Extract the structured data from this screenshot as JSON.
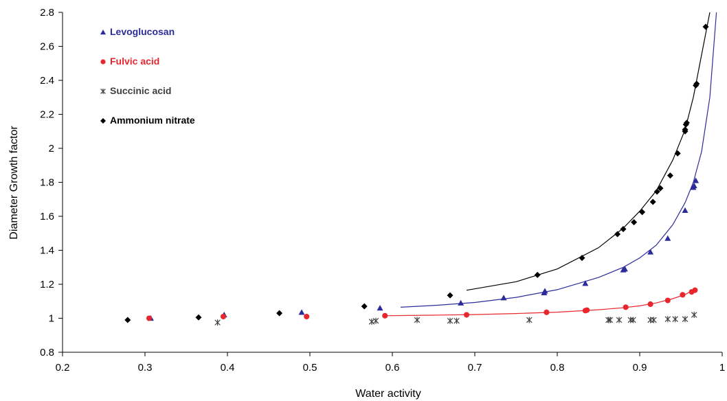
{
  "chart_data": {
    "type": "scatter",
    "title": "",
    "xlabel": "Water activity",
    "ylabel": "Diameter Growth factor",
    "xlim": [
      0.2,
      1.0
    ],
    "ylim": [
      0.8,
      2.8
    ],
    "xticks": [
      "0.2",
      "0.3",
      "0.4",
      "0.5",
      "0.6",
      "0.7",
      "0.8",
      "0.9",
      "1"
    ],
    "yticks": [
      "0.8",
      "1",
      "1.2",
      "1.4",
      "1.6",
      "1.8",
      "2",
      "2.2",
      "2.4",
      "2.6",
      "2.8"
    ],
    "grid": false,
    "legend_placement": "top-left",
    "series": [
      {
        "name": "Levoglucosan",
        "color": "#2b2b9b",
        "marker": "triangle",
        "points": [
          [
            0.307,
            1.0
          ],
          [
            0.396,
            1.02
          ],
          [
            0.49,
            1.035
          ],
          [
            0.585,
            1.06
          ],
          [
            0.683,
            1.09
          ],
          [
            0.735,
            1.12
          ],
          [
            0.784,
            1.15
          ],
          [
            0.785,
            1.16
          ],
          [
            0.834,
            1.205
          ],
          [
            0.88,
            1.285
          ],
          [
            0.882,
            1.29
          ],
          [
            0.913,
            1.39
          ],
          [
            0.934,
            1.47
          ],
          [
            0.955,
            1.635
          ],
          [
            0.965,
            1.77
          ],
          [
            0.966,
            1.78
          ],
          [
            0.968,
            1.81
          ]
        ],
        "fit": [
          [
            0.61,
            1.065
          ],
          [
            0.65,
            1.075
          ],
          [
            0.7,
            1.093
          ],
          [
            0.75,
            1.123
          ],
          [
            0.8,
            1.168
          ],
          [
            0.85,
            1.24
          ],
          [
            0.88,
            1.3
          ],
          [
            0.9,
            1.355
          ],
          [
            0.92,
            1.43
          ],
          [
            0.94,
            1.55
          ],
          [
            0.955,
            1.68
          ],
          [
            0.965,
            1.8
          ],
          [
            0.975,
            1.98
          ],
          [
            0.985,
            2.3
          ],
          [
            0.993,
            2.8
          ]
        ]
      },
      {
        "name": "Fulvic acid",
        "color": "#e8262d",
        "marker": "circle",
        "points": [
          [
            0.305,
            1.0
          ],
          [
            0.395,
            1.01
          ],
          [
            0.496,
            1.01
          ],
          [
            0.591,
            1.015
          ],
          [
            0.69,
            1.02
          ],
          [
            0.787,
            1.035
          ],
          [
            0.834,
            1.045
          ],
          [
            0.836,
            1.048
          ],
          [
            0.883,
            1.065
          ],
          [
            0.913,
            1.083
          ],
          [
            0.934,
            1.105
          ],
          [
            0.952,
            1.138
          ],
          [
            0.963,
            1.155
          ],
          [
            0.967,
            1.165
          ]
        ],
        "fit": [
          [
            0.59,
            1.015
          ],
          [
            0.65,
            1.018
          ],
          [
            0.7,
            1.022
          ],
          [
            0.75,
            1.028
          ],
          [
            0.8,
            1.036
          ],
          [
            0.85,
            1.05
          ],
          [
            0.88,
            1.062
          ],
          [
            0.9,
            1.073
          ],
          [
            0.92,
            1.09
          ],
          [
            0.94,
            1.115
          ],
          [
            0.955,
            1.14
          ],
          [
            0.965,
            1.165
          ],
          [
            0.968,
            1.17
          ]
        ]
      },
      {
        "name": "Succinic acid",
        "color": "#3e3e3e",
        "marker": "star",
        "points": [
          [
            0.388,
            0.975
          ],
          [
            0.575,
            0.98
          ],
          [
            0.58,
            0.985
          ],
          [
            0.63,
            0.99
          ],
          [
            0.67,
            0.985
          ],
          [
            0.678,
            0.985
          ],
          [
            0.766,
            0.99
          ],
          [
            0.862,
            0.99
          ],
          [
            0.864,
            0.99
          ],
          [
            0.875,
            0.99
          ],
          [
            0.889,
            0.99
          ],
          [
            0.892,
            0.99
          ],
          [
            0.913,
            0.99
          ],
          [
            0.917,
            0.99
          ],
          [
            0.934,
            0.995
          ],
          [
            0.943,
            0.995
          ],
          [
            0.955,
            0.995
          ],
          [
            0.966,
            1.02
          ]
        ]
      },
      {
        "name": "Ammonium nitrate",
        "color": "#000000",
        "marker": "diamond",
        "points": [
          [
            0.279,
            0.99
          ],
          [
            0.365,
            1.005
          ],
          [
            0.463,
            1.03
          ],
          [
            0.566,
            1.07
          ],
          [
            0.67,
            1.135
          ],
          [
            0.776,
            1.255
          ],
          [
            0.83,
            1.355
          ],
          [
            0.873,
            1.495
          ],
          [
            0.88,
            1.525
          ],
          [
            0.893,
            1.565
          ],
          [
            0.903,
            1.625
          ],
          [
            0.916,
            1.685
          ],
          [
            0.921,
            1.745
          ],
          [
            0.925,
            1.765
          ],
          [
            0.937,
            1.84
          ],
          [
            0.946,
            1.97
          ],
          [
            0.955,
            2.1
          ],
          [
            0.955,
            2.11
          ],
          [
            0.956,
            2.14
          ],
          [
            0.957,
            2.15
          ],
          [
            0.968,
            2.37
          ],
          [
            0.969,
            2.38
          ],
          [
            0.98,
            2.715
          ]
        ],
        "fit": [
          [
            0.69,
            1.165
          ],
          [
            0.75,
            1.215
          ],
          [
            0.8,
            1.29
          ],
          [
            0.85,
            1.415
          ],
          [
            0.88,
            1.53
          ],
          [
            0.9,
            1.63
          ],
          [
            0.92,
            1.75
          ],
          [
            0.94,
            1.93
          ],
          [
            0.955,
            2.11
          ],
          [
            0.965,
            2.3
          ],
          [
            0.975,
            2.55
          ],
          [
            0.985,
            2.8
          ]
        ]
      }
    ]
  }
}
